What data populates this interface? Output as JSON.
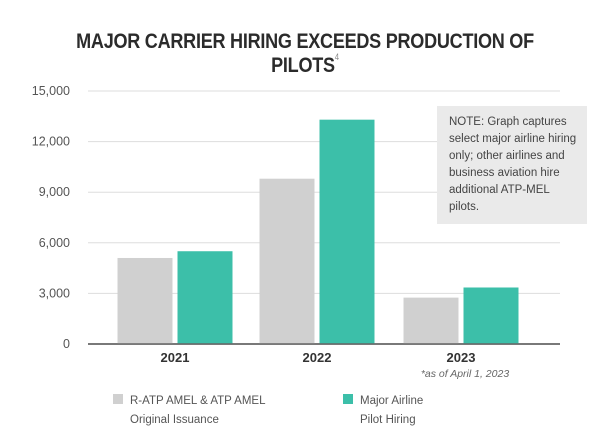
{
  "chart_data": {
    "type": "bar",
    "title": "MAJOR CARRIER HIRING EXCEEDS PRODUCTION OF PILOTS",
    "title_footnote": "4",
    "categories": [
      "2021",
      "2022",
      "2023"
    ],
    "category_notes": [
      "",
      "",
      "*as of April 1, 2023"
    ],
    "series": [
      {
        "name": "R-ATP AMEL & ATP AMEL Original Issuance",
        "legend_lines": [
          "R-ATP AMEL & ATP AMEL",
          "Original Issuance"
        ],
        "color": "#d0d0d0",
        "values": [
          5100,
          9800,
          2750
        ]
      },
      {
        "name": "Major Airline Pilot Hiring",
        "legend_lines": [
          "Major Airline",
          "Pilot Hiring"
        ],
        "color": "#3cbfa9",
        "values": [
          5500,
          13300,
          3350
        ]
      }
    ],
    "ylim": [
      0,
      15000
    ],
    "yticks": [
      0,
      3000,
      6000,
      9000,
      12000,
      15000
    ],
    "ytick_labels": [
      "0",
      "3,000",
      "6,000",
      "9,000",
      "12,000",
      "15,000"
    ],
    "grid": true,
    "note": "NOTE: Graph captures select major airline hiring only; other airlines and business aviation hire additional ATP-MEL pilots."
  }
}
